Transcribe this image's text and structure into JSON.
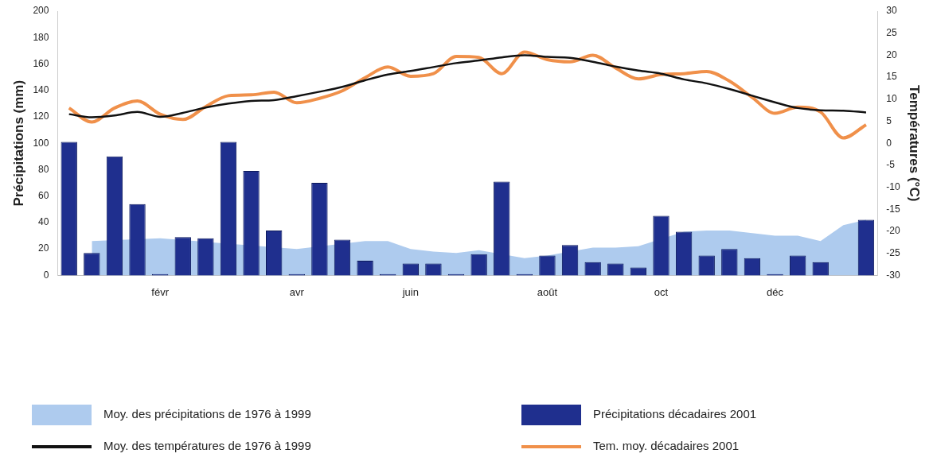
{
  "chart_data": {
    "type": "bar",
    "ylabel": "Précipitations (mm)",
    "y2label": "Températures (°C)",
    "categories": [
      null,
      null,
      null,
      null,
      "févr",
      null,
      null,
      null,
      null,
      null,
      "avr",
      null,
      null,
      null,
      null,
      "juin",
      null,
      null,
      null,
      null,
      null,
      "août",
      null,
      null,
      null,
      null,
      "oct",
      null,
      null,
      null,
      null,
      "déc",
      null,
      null,
      null,
      null
    ],
    "ylim": [
      0,
      200
    ],
    "yticks": [
      0,
      20,
      40,
      60,
      80,
      100,
      120,
      140,
      160,
      180,
      200
    ],
    "y2lim": [
      -30,
      30
    ],
    "y2ticks": [
      -30,
      -25,
      -20,
      -15,
      -10,
      -5,
      0,
      5,
      10,
      15,
      20,
      25,
      30
    ],
    "grid": false,
    "legend": "bottom",
    "series": [
      {
        "name": "Moy. des précipitations de 1976 à 1999",
        "type": "area",
        "color": "#aecbee",
        "values": [
          null,
          26,
          null,
          null,
          28,
          null,
          null,
          null,
          null,
          null,
          20,
          null,
          null,
          26,
          26,
          20,
          18,
          17,
          19,
          null,
          13,
          15,
          null,
          21,
          21,
          22,
          null,
          33,
          34,
          34,
          32,
          30,
          30,
          26,
          38,
          42
        ]
      },
      {
        "name": "Précipitations décadaires 2001",
        "color": "#1f2f8e",
        "values": [
          101,
          17,
          90,
          54,
          1,
          29,
          28,
          101,
          79,
          34,
          1,
          70,
          27,
          11,
          1,
          9,
          9,
          1,
          16,
          71,
          1,
          15,
          23,
          10,
          9,
          6,
          45,
          33,
          15,
          20,
          13,
          1,
          15,
          10,
          0,
          42
        ]
      },
      {
        "name": "Moy. des températures de 1976 à 1999",
        "type": "line",
        "axis": "y2",
        "color": "#111111",
        "values": [
          6.6,
          5.9,
          6.3,
          7.1,
          6,
          6.9,
          8.1,
          9,
          9.6,
          9.8,
          10.7,
          11.7,
          12.8,
          14.3,
          15.6,
          16.4,
          17.3,
          18.2,
          18.8,
          19.5,
          20,
          19.6,
          19.4,
          18.5,
          17.4,
          16.5,
          15.8,
          14.5,
          13.6,
          12.3,
          10.8,
          9.3,
          8,
          7.5,
          7.4,
          7
        ]
      },
      {
        "name": "Tem. moy. décadaires 2001",
        "type": "line",
        "axis": "y2",
        "color": "#f0904a",
        "values": [
          8,
          4.8,
          8,
          9.6,
          6.6,
          5.4,
          8.3,
          10.8,
          11,
          11.6,
          9.2,
          10.2,
          11.9,
          14.9,
          17.3,
          15.2,
          15.8,
          19.7,
          19.5,
          15.8,
          20.7,
          19,
          18.5,
          20,
          17.1,
          14.6,
          15.6,
          15.8,
          16.3,
          14.1,
          10.4,
          6.8,
          8.2,
          7.1,
          1.2,
          4.2
        ]
      }
    ]
  }
}
